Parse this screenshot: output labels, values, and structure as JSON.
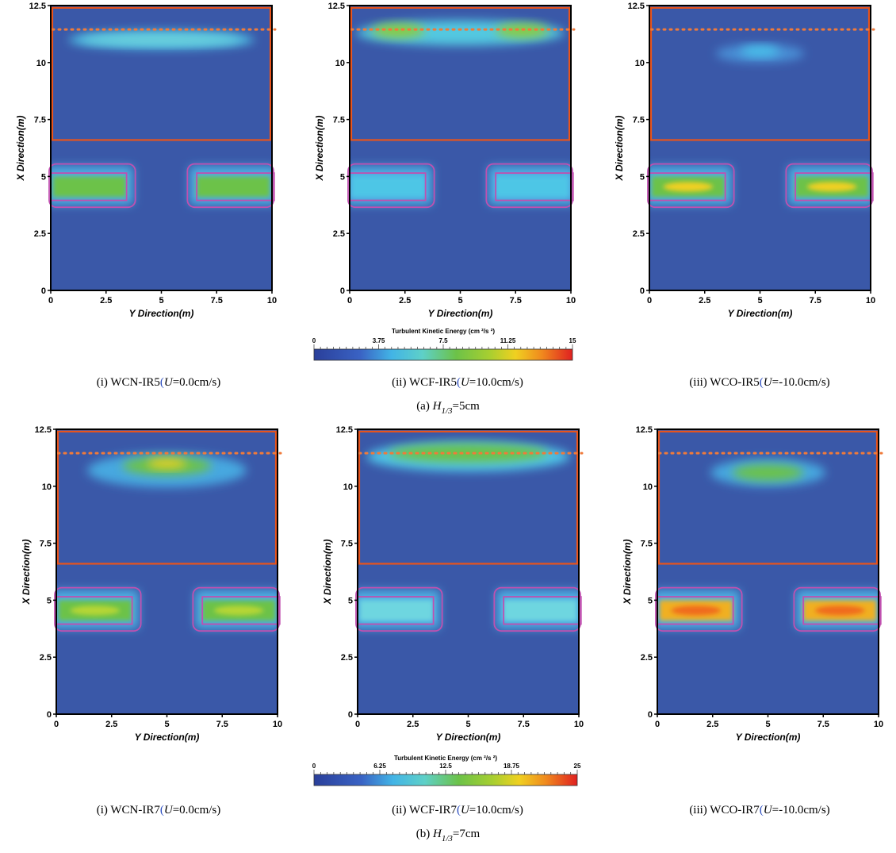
{
  "figure": {
    "rows": [
      {
        "label": "(a)",
        "wave_symbol": "H",
        "wave_sub": "1/3",
        "wave_value": "=5cm",
        "colorbar": {
          "title": "Turbulent Kinetic Energy  (cm ²/s ²)",
          "min": 0,
          "max": 15,
          "tick_labels": [
            "0",
            "3.75",
            "7.5",
            "11.25",
            "15"
          ]
        },
        "panels": [
          {
            "roman": "(i)",
            "case": "WCN-IR5",
            "u_text": "=0.0cm/s"
          },
          {
            "roman": "(ii)",
            "case": "WCF-IR5",
            "u_text": "=10.0cm/s"
          },
          {
            "roman": "(iii)",
            "case": "WCO-IR5",
            "u_text": "=-10.0cm/s"
          }
        ]
      },
      {
        "label": "(b)",
        "wave_symbol": "H",
        "wave_sub": "1/3",
        "wave_value": "=7cm",
        "colorbar": {
          "title": "Turbulent Kinetic Energy  (cm ²/s ²)",
          "min": 0,
          "max": 25,
          "tick_labels": [
            "0",
            "6.25",
            "12.5",
            "18.75",
            "25"
          ]
        },
        "panels": [
          {
            "roman": "(i)",
            "case": "WCN-IR7",
            "u_text": "=0.0cm/s"
          },
          {
            "roman": "(ii)",
            "case": "WCF-IR7",
            "u_text": "=10.0cm/s"
          },
          {
            "roman": "(iii)",
            "case": "WCO-IR7",
            "u_text": "=-10.0cm/s"
          }
        ]
      }
    ],
    "u_symbol": "U",
    "colors": {
      "background_field": "#3a58a8",
      "structure_outline": "#e8541c",
      "breakwater_outline": "#c050b0",
      "dotted_line": "#f07a3a"
    }
  },
  "chart_data": [
    {
      "type": "heatmap",
      "title": "(i) WCN-IR5(U=0.0cm/s)",
      "xlabel": "Y Direction(m)",
      "ylabel": "X Direction(m)",
      "xlim": [
        0,
        10
      ],
      "ylim": [
        0,
        12.5
      ],
      "x_ticks": [
        "0",
        "2.5",
        "5",
        "7.5",
        "10"
      ],
      "y_ticks": [
        "0",
        "2.5",
        "5",
        "7.5",
        "10",
        "12.5"
      ],
      "colorbar_range": [
        0,
        15
      ]
    },
    {
      "type": "heatmap",
      "title": "(ii) WCF-IR5(U=10.0cm/s)",
      "xlabel": "Y Direction(m)",
      "ylabel": "X Direction(m)",
      "xlim": [
        0,
        10
      ],
      "ylim": [
        0,
        12.5
      ],
      "x_ticks": [
        "0",
        "2.5",
        "5",
        "7.5",
        "10"
      ],
      "y_ticks": [
        "0",
        "2.5",
        "5",
        "7.5",
        "10",
        "12.5"
      ],
      "colorbar_range": [
        0,
        15
      ]
    },
    {
      "type": "heatmap",
      "title": "(iii) WCO-IR5(U=-10.0cm/s)",
      "xlabel": "Y Direction(m)",
      "ylabel": "X Direction(m)",
      "xlim": [
        0,
        10
      ],
      "ylim": [
        0,
        12.5
      ],
      "x_ticks": [
        "0",
        "2.5",
        "5",
        "7.5",
        "10"
      ],
      "y_ticks": [
        "0",
        "2.5",
        "5",
        "7.5",
        "10",
        "12.5"
      ],
      "colorbar_range": [
        0,
        15
      ]
    },
    {
      "type": "heatmap",
      "title": "(i) WCN-IR7(U=0.0cm/s)",
      "xlabel": "Y Direction(m)",
      "ylabel": "X Direction(m)",
      "xlim": [
        0,
        10
      ],
      "ylim": [
        0,
        12.5
      ],
      "x_ticks": [
        "0",
        "2.5",
        "5",
        "7.5",
        "10"
      ],
      "y_ticks": [
        "0",
        "2.5",
        "5",
        "7.5",
        "10",
        "12.5"
      ],
      "colorbar_range": [
        0,
        25
      ]
    },
    {
      "type": "heatmap",
      "title": "(ii) WCF-IR7(U=10.0cm/s)",
      "xlabel": "Y Direction(m)",
      "ylabel": "X Direction(m)",
      "xlim": [
        0,
        10
      ],
      "ylim": [
        0,
        12.5
      ],
      "x_ticks": [
        "0",
        "2.5",
        "5",
        "7.5",
        "10"
      ],
      "y_ticks": [
        "0",
        "2.5",
        "5",
        "7.5",
        "10",
        "12.5"
      ],
      "colorbar_range": [
        0,
        25
      ]
    },
    {
      "type": "heatmap",
      "title": "(iii) WCO-IR7(U=-10.0cm/s)",
      "xlabel": "Y Direction(m)",
      "ylabel": "X Direction(m)",
      "xlim": [
        0,
        10
      ],
      "ylim": [
        0,
        12.5
      ],
      "x_ticks": [
        "0",
        "2.5",
        "5",
        "7.5",
        "10"
      ],
      "y_ticks": [
        "0",
        "2.5",
        "5",
        "7.5",
        "10",
        "12.5"
      ],
      "colorbar_range": [
        0,
        25
      ]
    }
  ]
}
